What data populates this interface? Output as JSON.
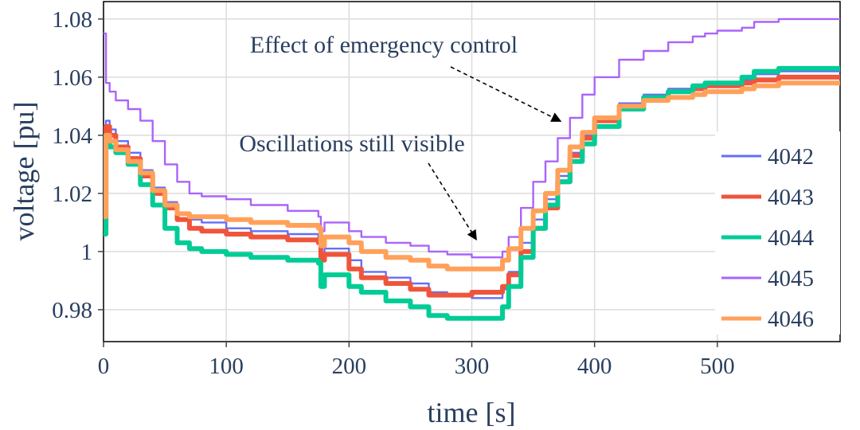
{
  "chart_data": {
    "type": "line",
    "title": "",
    "xlabel": "time [s]",
    "ylabel": "voltage [pu]",
    "xlim": [
      0,
      600
    ],
    "ylim": [
      0.969,
      1.086
    ],
    "xticks": [
      0,
      100,
      200,
      300,
      400,
      500
    ],
    "xtick_labels": [
      "0",
      "100",
      "200",
      "300",
      "400",
      "500"
    ],
    "yticks": [
      0.98,
      1.0,
      1.02,
      1.04,
      1.06,
      1.08
    ],
    "ytick_labels": [
      "0.98",
      "1",
      "1.02",
      "1.04",
      "1.06",
      "1.08"
    ],
    "grid": true,
    "legend_position": "right",
    "x": [
      0,
      2,
      5,
      10,
      20,
      30,
      40,
      50,
      60,
      70,
      80,
      100,
      120,
      150,
      175,
      177,
      180,
      200,
      210,
      230,
      250,
      265,
      280,
      300,
      310,
      320,
      325,
      330,
      340,
      350,
      360,
      370,
      380,
      390,
      400,
      420,
      440,
      460,
      480,
      490,
      500,
      520,
      530,
      550,
      570,
      600
    ],
    "series": [
      {
        "name": "4042",
        "color": "#636efa",
        "thickness": 2.4,
        "values": [
          1.008,
          1.045,
          1.042,
          1.038,
          1.034,
          1.028,
          1.022,
          1.017,
          1.013,
          1.011,
          1.01,
          1.008,
          1.007,
          1.006,
          1.005,
          0.998,
          1.001,
          0.997,
          0.993,
          0.991,
          0.989,
          0.986,
          0.985,
          0.984,
          0.984,
          0.984,
          0.987,
          0.993,
          1.003,
          1.011,
          1.018,
          1.026,
          1.034,
          1.04,
          1.046,
          1.051,
          1.054,
          1.056,
          1.057,
          1.058,
          1.058,
          1.059,
          1.061,
          1.062,
          1.062,
          1.062
        ]
      },
      {
        "name": "4043",
        "color": "#ef553b",
        "thickness": 6,
        "values": [
          1.008,
          1.043,
          1.04,
          1.036,
          1.032,
          1.026,
          1.02,
          1.015,
          1.011,
          1.008,
          1.007,
          1.006,
          1.005,
          1.004,
          1.003,
          0.997,
          0.999,
          0.994,
          0.991,
          0.989,
          0.987,
          0.985,
          0.985,
          0.986,
          0.986,
          0.986,
          0.988,
          0.992,
          1.0,
          1.008,
          1.015,
          1.024,
          1.033,
          1.039,
          1.045,
          1.05,
          1.053,
          1.055,
          1.056,
          1.057,
          1.057,
          1.058,
          1.059,
          1.06,
          1.06,
          1.06
        ]
      },
      {
        "name": "4044",
        "color": "#00cc96",
        "thickness": 6,
        "values": [
          1.006,
          1.038,
          1.036,
          1.034,
          1.03,
          1.023,
          1.016,
          1.008,
          1.003,
          1.001,
          1.0,
          0.999,
          0.998,
          0.997,
          0.996,
          0.988,
          0.992,
          0.988,
          0.986,
          0.983,
          0.981,
          0.978,
          0.977,
          0.977,
          0.977,
          0.977,
          0.981,
          0.988,
          0.998,
          1.008,
          1.016,
          1.024,
          1.031,
          1.037,
          1.043,
          1.049,
          1.053,
          1.055,
          1.057,
          1.058,
          1.058,
          1.06,
          1.062,
          1.063,
          1.063,
          1.063
        ]
      },
      {
        "name": "4045",
        "color": "#ab63fa",
        "thickness": 2.4,
        "values": [
          1.075,
          1.058,
          1.055,
          1.052,
          1.049,
          1.045,
          1.038,
          1.03,
          1.024,
          1.02,
          1.019,
          1.018,
          1.016,
          1.014,
          1.012,
          1.007,
          1.01,
          1.007,
          1.005,
          1.003,
          1.002,
          1.0,
          0.999,
          0.998,
          0.998,
          0.998,
          1.0,
          1.005,
          1.015,
          1.024,
          1.031,
          1.039,
          1.046,
          1.054,
          1.06,
          1.066,
          1.069,
          1.072,
          1.074,
          1.075,
          1.076,
          1.077,
          1.079,
          1.08,
          1.08,
          1.08
        ]
      },
      {
        "name": "4046",
        "color": "#ffa15a",
        "thickness": 6,
        "values": [
          1.012,
          1.04,
          1.038,
          1.035,
          1.031,
          1.027,
          1.021,
          1.016,
          1.013,
          1.012,
          1.012,
          1.011,
          1.01,
          1.009,
          1.008,
          1.002,
          1.005,
          1.003,
          1.0,
          0.998,
          0.997,
          0.995,
          0.994,
          0.994,
          0.994,
          0.994,
          0.997,
          1.001,
          1.008,
          1.014,
          1.02,
          1.028,
          1.036,
          1.041,
          1.046,
          1.05,
          1.052,
          1.053,
          1.054,
          1.055,
          1.055,
          1.056,
          1.057,
          1.058,
          1.058,
          1.058
        ]
      }
    ],
    "annotations": [
      {
        "text": "Effect of emergency control",
        "point_to": [
          375,
          1.044
        ]
      },
      {
        "text": "Oscillations still visible",
        "point_to": [
          305,
          1.003
        ]
      }
    ]
  }
}
